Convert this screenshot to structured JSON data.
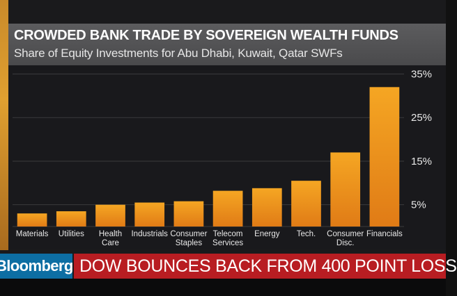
{
  "header": {
    "title": "CROWDED BANK TRADE BY SOVEREIGN WEALTH FUNDS",
    "subtitle": "Share of Equity Investments for Abu Dhabi, Kuwait, Qatar SWFs"
  },
  "ticker": {
    "brand": "Bloomberg",
    "headline": "DOW BOUNCES BACK FROM 400 POINT LOSS"
  },
  "colors": {
    "bar_top": "#f5a623",
    "bar_bottom": "#e07b16",
    "grid": "#3a3a3d",
    "axis_text": "#e8e8e8",
    "headline_bg": "#b81d22",
    "brand_bg": "#0d6ea3"
  },
  "chart_data": {
    "type": "bar",
    "categories": [
      [
        "Materials"
      ],
      [
        "Utilities"
      ],
      [
        "Health",
        "Care"
      ],
      [
        "Industrials"
      ],
      [
        "Consumer",
        "Staples"
      ],
      [
        "Telecom",
        "Services"
      ],
      [
        "Energy"
      ],
      [
        "Tech."
      ],
      [
        "Consumer",
        "Disc."
      ],
      [
        "Financials"
      ]
    ],
    "values": [
      3,
      3.5,
      5,
      5.5,
      5.8,
      8.2,
      8.8,
      10.5,
      17,
      32
    ],
    "ylim": [
      0,
      37
    ],
    "yticks": [
      5,
      15,
      25,
      35
    ],
    "ytick_labels": [
      "5%",
      "15%",
      "25%",
      "35%"
    ],
    "y_axis_side": "right",
    "grid": true
  }
}
